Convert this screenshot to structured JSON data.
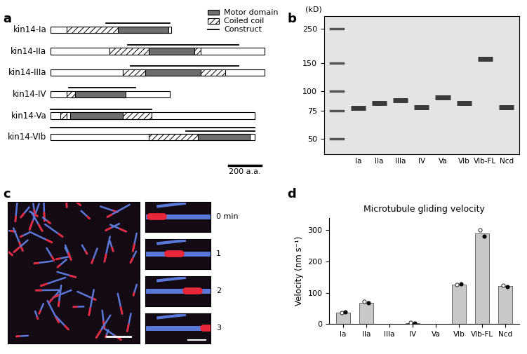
{
  "panel_labels": [
    "a",
    "b",
    "c",
    "d"
  ],
  "a": {
    "legend": {
      "motor": "Motor domain",
      "coiled_coil": "Coiled coil",
      "construct": "Construct"
    },
    "proteins": [
      {
        "name": "kin14-Ia",
        "length": 740,
        "coiled_coil": [
          [
            100,
            410
          ]
        ],
        "motor": [
          [
            410,
            720
          ]
        ],
        "constructs": [
          [
            340,
            730
          ]
        ]
      },
      {
        "name": "kin14-IIa",
        "length": 1310,
        "coiled_coil": [
          [
            360,
            600
          ],
          [
            880,
            920
          ]
        ],
        "motor": [
          [
            600,
            880
          ]
        ],
        "constructs": [
          [
            470,
            1150
          ]
        ]
      },
      {
        "name": "kin14-IIIa",
        "length": 1310,
        "coiled_coil": [
          [
            440,
            580
          ],
          [
            920,
            1070
          ]
        ],
        "motor": [
          [
            580,
            920
          ]
        ],
        "constructs": [
          [
            490,
            1150
          ]
        ]
      },
      {
        "name": "kin14-IV",
        "length": 730,
        "coiled_coil": [
          [
            100,
            150
          ]
        ],
        "motor": [
          [
            150,
            460
          ]
        ],
        "constructs": [
          [
            110,
            520
          ]
        ]
      },
      {
        "name": "kin14-Va",
        "length": 1250,
        "coiled_coil": [
          [
            60,
            100
          ],
          [
            440,
            620
          ]
        ],
        "motor": [
          [
            120,
            440
          ]
        ],
        "constructs": [
          [
            0,
            620
          ]
        ]
      },
      {
        "name": "kin14-VIb",
        "length": 1250,
        "coiled_coil": [
          [
            600,
            900
          ]
        ],
        "motor": [
          [
            900,
            1220
          ]
        ],
        "constructs": [
          [
            830,
            1250
          ],
          [
            0,
            1250
          ]
        ]
      }
    ],
    "scale_bar": {
      "length": 200,
      "label": "200 a.a."
    }
  },
  "b": {
    "unit_label": "(kD)",
    "log": "y",
    "ylim": [
      40,
      300
    ],
    "yticks": [
      250,
      150,
      100,
      75,
      50
    ],
    "lanes": [
      "Ia",
      "IIa",
      "IIIa",
      "IV",
      "Va",
      "VIb",
      "VIb-FL",
      "Ncd"
    ],
    "bands": [
      78,
      84,
      88,
      79,
      91,
      84,
      160,
      79
    ]
  },
  "c": {
    "time_labels": [
      "0 min",
      "1",
      "2",
      "3"
    ]
  },
  "chart_data": {
    "type": "bar",
    "title": "Microtubule gliding velocity",
    "y_label": "Velocity (nm s⁻¹)",
    "categories": [
      "Ia",
      "IIa",
      "IIIa",
      "IV",
      "Va",
      "VIb",
      "VIb-FL",
      "Ncd"
    ],
    "values": [
      36,
      68,
      0,
      3,
      0,
      126,
      290,
      122
    ],
    "color": "#c8c8c8",
    "replicates": [
      {
        "marker": "open",
        "values": [
          35,
          72,
          null,
          4,
          null,
          125,
          300,
          124
        ]
      },
      {
        "marker": "filled",
        "values": [
          39,
          67,
          null,
          2,
          null,
          127,
          281,
          119
        ]
      }
    ],
    "ylim": [
      0,
      340
    ],
    "yticks": [
      0,
      100,
      200,
      300
    ],
    "grid": false
  }
}
